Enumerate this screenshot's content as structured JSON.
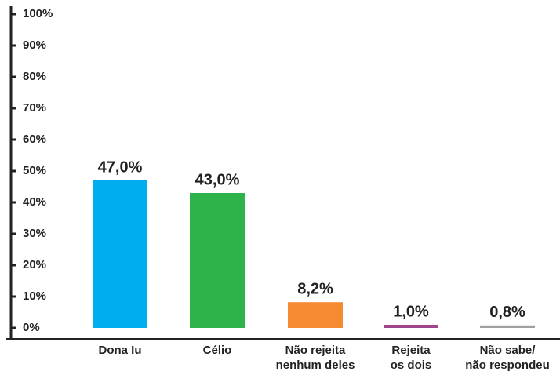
{
  "chart_data": {
    "type": "bar",
    "categories": [
      [
        "Dona Iu"
      ],
      [
        "Célio"
      ],
      [
        "Não rejeita",
        "nenhum deles"
      ],
      [
        "Rejeita",
        "os dois"
      ],
      [
        "Não sabe/",
        "não respondeu"
      ]
    ],
    "values": [
      47,
      43,
      8.2,
      1,
      0.8
    ],
    "value_labels": [
      "47,0%",
      "43,0%",
      "8,2%",
      "1,0%",
      "0,8%"
    ],
    "colors": [
      "#00adef",
      "#2db34a",
      "#f58a32",
      "#a0448c",
      "#a0a0a0"
    ],
    "ylim": [
      0,
      100
    ],
    "yticks": [
      {
        "value": 0,
        "label": "0%"
      },
      {
        "value": 10,
        "label": "10%"
      },
      {
        "value": 20,
        "label": "20%"
      },
      {
        "value": 30,
        "label": "30%"
      },
      {
        "value": 40,
        "label": "40%"
      },
      {
        "value": 50,
        "label": "50%"
      },
      {
        "value": 60,
        "label": "60%"
      },
      {
        "value": 70,
        "label": "70%"
      },
      {
        "value": 80,
        "label": "80%"
      },
      {
        "value": 90,
        "label": "90%"
      },
      {
        "value": 100,
        "label": "100%"
      }
    ]
  }
}
